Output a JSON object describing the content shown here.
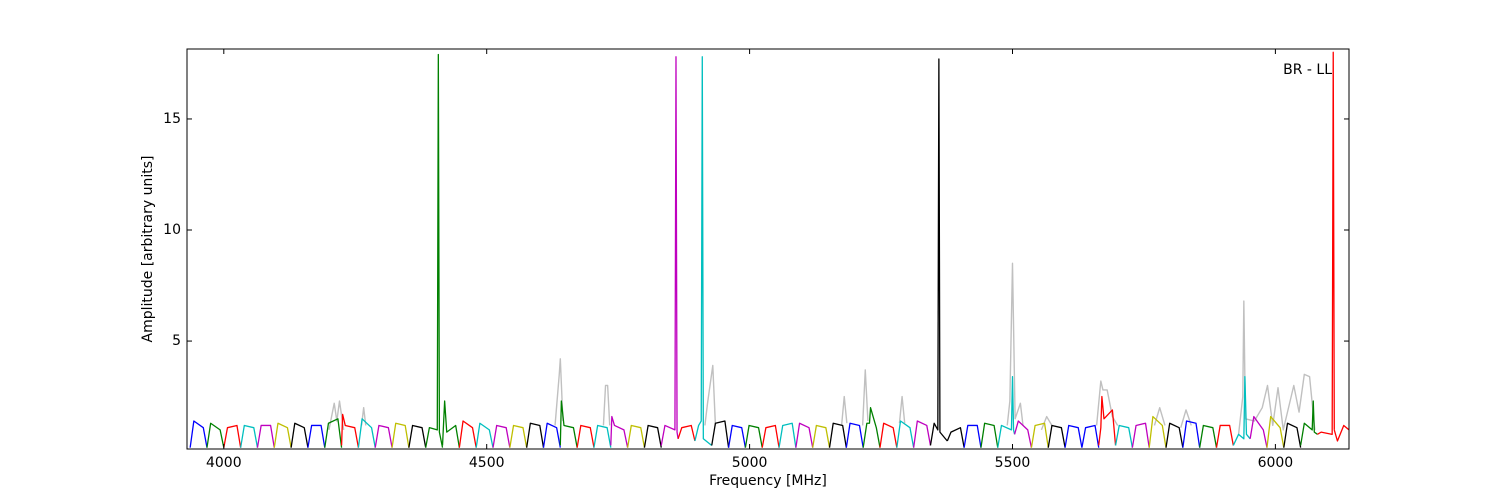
{
  "chart_data": {
    "type": "line",
    "annotation": "BR - LL",
    "xlabel": "Frequency [MHz]",
    "ylabel": "Amplitude [arbitrary units]",
    "xlim": [
      3930,
      6140
    ],
    "ylim": [
      0.14,
      18.15
    ],
    "xticks": [
      4000,
      4500,
      5000,
      5500,
      6000
    ],
    "yticks": [
      5,
      10,
      15
    ],
    "background": {
      "color": "#c0c0c0",
      "x": [
        4200,
        4210,
        4215,
        4220,
        4228,
        null,
        4262,
        4266,
        4270,
        null,
        4630,
        4638,
        4640,
        4645,
        null,
        4722,
        4726,
        4730,
        4734,
        null,
        4915,
        4920,
        4930,
        4935,
        null,
        5175,
        5180,
        5185,
        null,
        5215,
        5220,
        5225,
        null,
        5285,
        5290,
        5295,
        null,
        5490,
        5495,
        5500,
        5505,
        5515,
        5520,
        null,
        5555,
        5565,
        5575,
        null,
        5660,
        5668,
        5672,
        5680,
        5690,
        5700,
        null,
        5770,
        5780,
        5790,
        null,
        5820,
        5830,
        5840,
        null,
        5930,
        5938,
        5940,
        5943,
        5960,
        5975,
        5985,
        5995,
        6005,
        6015,
        6035,
        6045,
        6055,
        6065,
        6075
      ],
      "values": [
        1.0,
        2.2,
        1.4,
        2.3,
        1.0,
        null,
        1.2,
        2.0,
        1.2,
        null,
        1.2,
        3.5,
        4.2,
        1.4,
        null,
        1.2,
        3.0,
        3.0,
        1.2,
        null,
        1.2,
        2.2,
        3.9,
        1.2,
        null,
        1.2,
        2.5,
        1.3,
        null,
        1.2,
        3.7,
        1.4,
        null,
        1.3,
        2.5,
        1.3,
        null,
        1.2,
        2.3,
        8.5,
        1.5,
        2.2,
        1.2,
        null,
        1.0,
        1.6,
        1.2,
        null,
        1.2,
        3.2,
        2.8,
        2.8,
        1.6,
        1.2,
        null,
        1.2,
        2.0,
        1.2,
        null,
        1.1,
        1.9,
        1.2,
        null,
        0.8,
        2.5,
        6.8,
        1.5,
        1.4,
        2.0,
        3.0,
        1.2,
        2.9,
        1.0,
        3.0,
        1.8,
        3.5,
        3.4,
        1.0
      ]
    },
    "series": [
      {
        "color": "#0000ff",
        "x": [
          3936,
          3943,
          3961,
          3968
        ],
        "values": [
          0.2,
          1.4,
          1.1,
          0.2
        ]
      },
      {
        "color": "#008000",
        "x": [
          3968,
          3975,
          3993,
          4000
        ],
        "values": [
          0.2,
          1.3,
          1.0,
          0.2
        ]
      },
      {
        "color": "#ff0000",
        "x": [
          4000,
          4007,
          4025,
          4032
        ],
        "values": [
          0.2,
          1.1,
          1.2,
          0.2
        ]
      },
      {
        "color": "#00bfbf",
        "x": [
          4032,
          4039,
          4057,
          4064
        ],
        "values": [
          0.2,
          1.2,
          1.1,
          0.2
        ]
      },
      {
        "color": "#bf00bf",
        "x": [
          4064,
          4071,
          4089,
          4096
        ],
        "values": [
          0.2,
          1.2,
          1.2,
          0.2
        ]
      },
      {
        "color": "#bfbf00",
        "x": [
          4096,
          4103,
          4121,
          4128
        ],
        "values": [
          0.2,
          1.3,
          1.1,
          0.2
        ]
      },
      {
        "color": "#000000",
        "x": [
          4128,
          4135,
          4153,
          4160
        ],
        "values": [
          0.2,
          1.3,
          1.1,
          0.2
        ]
      },
      {
        "color": "#0000ff",
        "x": [
          4160,
          4167,
          4185,
          4192
        ],
        "values": [
          0.2,
          1.2,
          1.2,
          0.2
        ]
      },
      {
        "color": "#008000",
        "x": [
          4192,
          4199,
          4217,
          4224
        ],
        "values": [
          0.2,
          1.3,
          1.5,
          0.2
        ]
      },
      {
        "color": "#ff0000",
        "x": [
          4224,
          4226,
          4231,
          4249,
          4256
        ],
        "values": [
          0.3,
          1.7,
          1.2,
          1.1,
          0.2
        ]
      },
      {
        "color": "#00bfbf",
        "x": [
          4256,
          4263,
          4281,
          4288
        ],
        "values": [
          0.2,
          1.5,
          1.1,
          0.2
        ]
      },
      {
        "color": "#bf00bf",
        "x": [
          4288,
          4295,
          4313,
          4320
        ],
        "values": [
          0.2,
          1.2,
          1.1,
          0.2
        ]
      },
      {
        "color": "#bfbf00",
        "x": [
          4320,
          4327,
          4345,
          4352
        ],
        "values": [
          0.2,
          1.3,
          1.2,
          0.2
        ]
      },
      {
        "color": "#000000",
        "x": [
          4352,
          4359,
          4377,
          4384
        ],
        "values": [
          0.2,
          1.2,
          1.1,
          0.2
        ]
      },
      {
        "color": "#008000",
        "x": [
          4384,
          4391,
          4406,
          4408,
          4410,
          4416
        ],
        "values": [
          0.2,
          1.1,
          1.0,
          17.9,
          0.9,
          0.2
        ]
      },
      {
        "color": "#008000",
        "x": [
          4416,
          4420,
          4424,
          4441,
          4448
        ],
        "values": [
          0.3,
          2.3,
          0.9,
          1.2,
          0.2
        ]
      },
      {
        "color": "#ff0000",
        "x": [
          4448,
          4455,
          4473,
          4480
        ],
        "values": [
          0.2,
          1.4,
          1.1,
          0.2
        ]
      },
      {
        "color": "#00bfbf",
        "x": [
          4480,
          4487,
          4505,
          4512
        ],
        "values": [
          0.2,
          1.3,
          1.0,
          0.2
        ]
      },
      {
        "color": "#bf00bf",
        "x": [
          4512,
          4519,
          4537,
          4544
        ],
        "values": [
          0.2,
          1.2,
          1.1,
          0.2
        ]
      },
      {
        "color": "#bfbf00",
        "x": [
          4544,
          4551,
          4569,
          4576
        ],
        "values": [
          0.2,
          1.2,
          1.1,
          0.2
        ]
      },
      {
        "color": "#000000",
        "x": [
          4576,
          4583,
          4601,
          4608
        ],
        "values": [
          0.2,
          1.3,
          1.2,
          0.2
        ]
      },
      {
        "color": "#0000ff",
        "x": [
          4608,
          4615,
          4633,
          4640
        ],
        "values": [
          0.2,
          1.3,
          1.1,
          0.2
        ]
      },
      {
        "color": "#008000",
        "x": [
          4640,
          4642,
          4647,
          4665,
          4672
        ],
        "values": [
          0.3,
          2.3,
          1.2,
          1.1,
          0.2
        ]
      },
      {
        "color": "#ff0000",
        "x": [
          4672,
          4679,
          4697,
          4704
        ],
        "values": [
          0.2,
          1.2,
          1.1,
          0.2
        ]
      },
      {
        "color": "#00bfbf",
        "x": [
          4704,
          4711,
          4729,
          4736
        ],
        "values": [
          0.2,
          1.2,
          1.1,
          0.2
        ]
      },
      {
        "color": "#bf00bf",
        "x": [
          4736,
          4738,
          4743,
          4761,
          4768
        ],
        "values": [
          0.3,
          1.6,
          1.2,
          1.0,
          0.2
        ]
      },
      {
        "color": "#bfbf00",
        "x": [
          4768,
          4775,
          4793,
          4800
        ],
        "values": [
          0.2,
          1.2,
          1.1,
          0.2
        ]
      },
      {
        "color": "#000000",
        "x": [
          4800,
          4807,
          4825,
          4832
        ],
        "values": [
          0.2,
          1.2,
          1.1,
          0.2
        ]
      },
      {
        "color": "#bf00bf",
        "x": [
          4832,
          4839,
          4858,
          4860,
          4862,
          4864
        ],
        "values": [
          0.3,
          1.2,
          1.0,
          17.8,
          0.9,
          0.6
        ]
      },
      {
        "color": "#ff0000",
        "x": [
          4864,
          4871,
          4889,
          4896
        ],
        "values": [
          0.6,
          1.1,
          1.2,
          0.5
        ]
      },
      {
        "color": "#00bfbf",
        "x": [
          4896,
          4903,
          4908,
          4910,
          4912,
          4928
        ],
        "values": [
          0.5,
          1.2,
          1.4,
          17.8,
          0.6,
          0.3
        ]
      },
      {
        "color": "#000000",
        "x": [
          4928,
          4935,
          4953,
          4960
        ],
        "values": [
          0.3,
          1.3,
          1.4,
          0.2
        ]
      },
      {
        "color": "#0000ff",
        "x": [
          4960,
          4967,
          4985,
          4992
        ],
        "values": [
          0.2,
          1.2,
          1.1,
          0.2
        ]
      },
      {
        "color": "#008000",
        "x": [
          4992,
          4999,
          5017,
          5024
        ],
        "values": [
          0.2,
          1.2,
          1.1,
          0.2
        ]
      },
      {
        "color": "#ff0000",
        "x": [
          5024,
          5031,
          5049,
          5056
        ],
        "values": [
          0.2,
          1.1,
          1.2,
          0.2
        ]
      },
      {
        "color": "#00bfbf",
        "x": [
          5056,
          5063,
          5081,
          5088
        ],
        "values": [
          0.2,
          1.2,
          1.3,
          0.2
        ]
      },
      {
        "color": "#bf00bf",
        "x": [
          5088,
          5095,
          5113,
          5120
        ],
        "values": [
          0.2,
          1.3,
          1.1,
          0.2
        ]
      },
      {
        "color": "#bfbf00",
        "x": [
          5120,
          5127,
          5145,
          5152
        ],
        "values": [
          0.2,
          1.2,
          1.1,
          0.2
        ]
      },
      {
        "color": "#000000",
        "x": [
          5152,
          5159,
          5177,
          5184
        ],
        "values": [
          0.2,
          1.3,
          1.2,
          0.2
        ]
      },
      {
        "color": "#0000ff",
        "x": [
          5184,
          5191,
          5209,
          5216
        ],
        "values": [
          0.2,
          1.3,
          1.2,
          0.2
        ]
      },
      {
        "color": "#008000",
        "x": [
          5216,
          5223,
          5228,
          5230,
          5241,
          5248
        ],
        "values": [
          0.2,
          1.3,
          1.3,
          2.0,
          1.1,
          0.2
        ]
      },
      {
        "color": "#ff0000",
        "x": [
          5248,
          5255,
          5273,
          5280
        ],
        "values": [
          0.2,
          1.3,
          1.1,
          0.2
        ]
      },
      {
        "color": "#00bfbf",
        "x": [
          5280,
          5287,
          5305,
          5312
        ],
        "values": [
          0.2,
          1.4,
          1.1,
          0.2
        ]
      },
      {
        "color": "#bf00bf",
        "x": [
          5312,
          5319,
          5337,
          5344
        ],
        "values": [
          0.2,
          1.4,
          1.2,
          0.3
        ]
      },
      {
        "color": "#000000",
        "x": [
          5344,
          5351,
          5358,
          5360,
          5362,
          5376
        ],
        "values": [
          0.3,
          1.3,
          1.0,
          17.7,
          0.9,
          0.5
        ]
      },
      {
        "color": "#000000",
        "x": [
          5376,
          5383,
          5401,
          5408
        ],
        "values": [
          0.5,
          0.9,
          1.1,
          0.2
        ]
      },
      {
        "color": "#0000ff",
        "x": [
          5408,
          5415,
          5433,
          5440
        ],
        "values": [
          0.2,
          1.2,
          1.2,
          0.2
        ]
      },
      {
        "color": "#008000",
        "x": [
          5440,
          5447,
          5465,
          5472
        ],
        "values": [
          0.2,
          1.3,
          1.2,
          0.2
        ]
      },
      {
        "color": "#00bfbf",
        "x": [
          5472,
          5479,
          5498,
          5500,
          5502,
          5504
        ],
        "values": [
          0.2,
          1.2,
          1.0,
          3.4,
          1.0,
          0.8
        ]
      },
      {
        "color": "#bf00bf",
        "x": [
          5504,
          5511,
          5529,
          5536
        ],
        "values": [
          0.8,
          1.4,
          1.0,
          0.2
        ]
      },
      {
        "color": "#bfbf00",
        "x": [
          5536,
          5543,
          5561,
          5568
        ],
        "values": [
          0.2,
          1.2,
          1.3,
          0.2
        ]
      },
      {
        "color": "#000000",
        "x": [
          5568,
          5575,
          5593,
          5600
        ],
        "values": [
          0.2,
          1.2,
          1.1,
          0.2
        ]
      },
      {
        "color": "#0000ff",
        "x": [
          5600,
          5607,
          5625,
          5632
        ],
        "values": [
          0.2,
          1.2,
          1.1,
          0.2
        ]
      },
      {
        "color": "#0000ff",
        "x": [
          5632,
          5639,
          5657,
          5664
        ],
        "values": [
          0.2,
          1.1,
          1.2,
          0.2
        ]
      },
      {
        "color": "#ff0000",
        "x": [
          5664,
          5668,
          5670,
          5674,
          5690,
          5696
        ],
        "values": [
          0.3,
          1.1,
          2.5,
          1.5,
          1.9,
          0.3
        ]
      },
      {
        "color": "#00bfbf",
        "x": [
          5696,
          5703,
          5721,
          5728
        ],
        "values": [
          0.3,
          1.2,
          1.1,
          0.2
        ]
      },
      {
        "color": "#bf00bf",
        "x": [
          5728,
          5735,
          5753,
          5760
        ],
        "values": [
          0.2,
          1.2,
          1.3,
          0.2
        ]
      },
      {
        "color": "#bfbf00",
        "x": [
          5760,
          5767,
          5785,
          5792
        ],
        "values": [
          0.2,
          1.6,
          1.2,
          0.2
        ]
      },
      {
        "color": "#000000",
        "x": [
          5792,
          5799,
          5817,
          5824
        ],
        "values": [
          0.2,
          1.3,
          1.1,
          0.2
        ]
      },
      {
        "color": "#0000ff",
        "x": [
          5824,
          5831,
          5849,
          5856
        ],
        "values": [
          0.2,
          1.4,
          1.3,
          0.2
        ]
      },
      {
        "color": "#008000",
        "x": [
          5856,
          5863,
          5881,
          5888
        ],
        "values": [
          0.2,
          1.2,
          1.1,
          0.2
        ]
      },
      {
        "color": "#ff0000",
        "x": [
          5888,
          5895,
          5913,
          5920
        ],
        "values": [
          0.2,
          1.2,
          1.2,
          0.3
        ]
      },
      {
        "color": "#00bfbf",
        "x": [
          5920,
          5930,
          5940,
          5942,
          5945,
          5952
        ],
        "values": [
          0.3,
          0.8,
          0.6,
          3.4,
          0.8,
          0.6
        ]
      },
      {
        "color": "#bf00bf",
        "x": [
          5952,
          5959,
          5977,
          5984
        ],
        "values": [
          0.6,
          1.6,
          1.0,
          0.2
        ]
      },
      {
        "color": "#bfbf00",
        "x": [
          5984,
          5991,
          6009,
          6016
        ],
        "values": [
          0.2,
          1.6,
          1.1,
          0.2
        ]
      },
      {
        "color": "#000000",
        "x": [
          6016,
          6023,
          6041,
          6048
        ],
        "values": [
          0.2,
          1.3,
          1.1,
          0.2
        ]
      },
      {
        "color": "#008000",
        "x": [
          6048,
          6055,
          6070,
          6072,
          6074,
          6080
        ],
        "values": [
          0.3,
          1.3,
          1.0,
          2.3,
          0.9,
          0.8
        ]
      },
      {
        "color": "#ff0000",
        "x": [
          6080,
          6087,
          6108,
          6110,
          6112
        ],
        "values": [
          0.8,
          0.9,
          0.8,
          18.0,
          1.0
        ]
      },
      {
        "color": "#ff0000",
        "x": [
          6112,
          6118,
          6130,
          6140
        ],
        "values": [
          1.0,
          0.5,
          1.2,
          1.0
        ]
      }
    ]
  }
}
